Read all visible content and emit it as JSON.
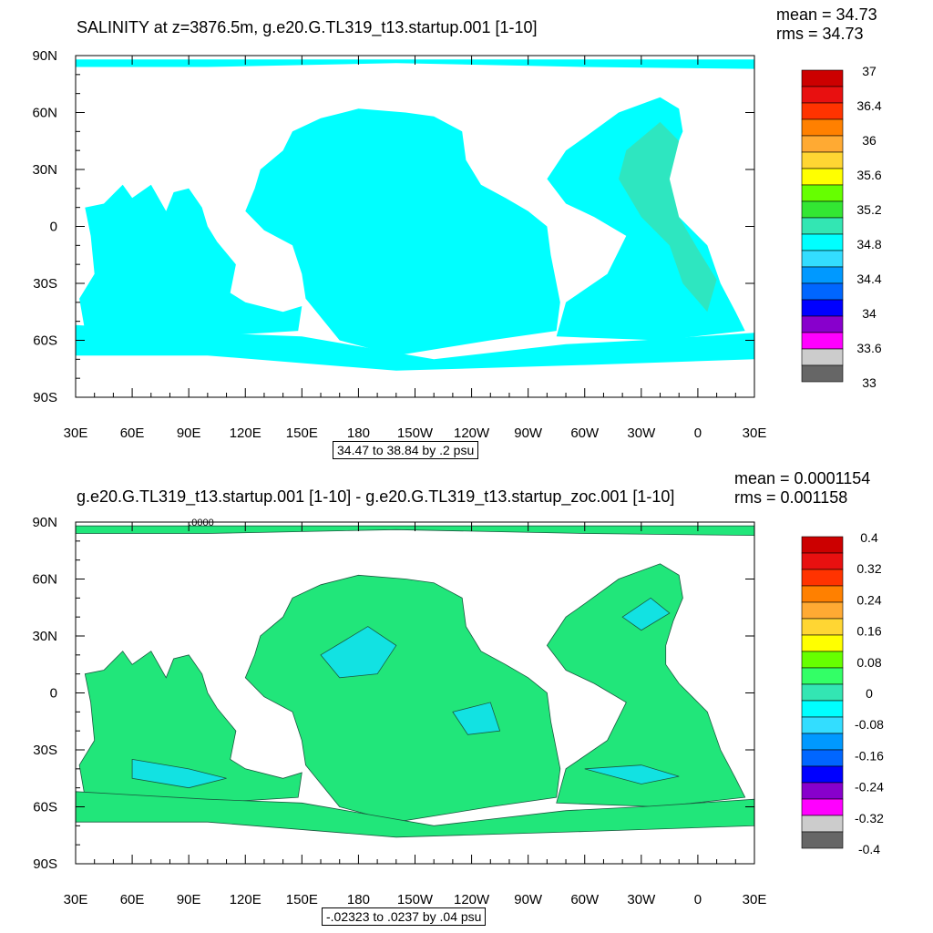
{
  "panels": [
    {
      "id": "top",
      "title": "SALINITY at z=3876.5m, g.e20.G.TL319_t13.startup.001 [1-10]",
      "mean_label": "mean = 34.73",
      "rms_label": "rms = 34.73",
      "range_label": "34.47 to 38.84 by .2 psu",
      "ocean_fill": "#00ffff",
      "accent_fill": "#2ee6c0"
    },
    {
      "id": "bottom",
      "title": "g.e20.G.TL319_t13.startup.001 [1-10] - g.e20.G.TL319_t13.startup_zoc.001 [1-10]",
      "mean_label": "mean = 0.0001154",
      "rms_label": "rms = 0.001158",
      "range_label": "-.02323 to .0237 by .04 psu",
      "contour_label": ".0000",
      "ocean_fill": "#21e67a",
      "accent_fill": "#12e2e2"
    }
  ],
  "chart_data": [
    {
      "type": "heatmap",
      "title": "SALINITY at z=3876.5m, g.e20.G.TL319_t13.startup.001 [1-10]",
      "x_ticks": [
        "30E",
        "60E",
        "90E",
        "120E",
        "150E",
        "180",
        "150W",
        "120W",
        "90W",
        "60W",
        "30W",
        "0",
        "30E"
      ],
      "y_ticks": [
        "90N",
        "60N",
        "30N",
        "0",
        "30S",
        "60S",
        "90S"
      ],
      "x_range_deg": [
        30,
        390
      ],
      "y_range_deg": [
        -90,
        90
      ],
      "colorbar": {
        "colors": [
          "#cc0000",
          "#e81010",
          "#ff3300",
          "#ff8000",
          "#ffaa33",
          "#ffd633",
          "#ffff00",
          "#66ff00",
          "#33e633",
          "#33e6b3",
          "#00ffff",
          "#33ddff",
          "#0099ff",
          "#0066ff",
          "#0000ff",
          "#8800cc",
          "#ff00ff",
          "#cccccc",
          "#666666"
        ],
        "labels": [
          "37",
          "36.4",
          "36",
          "35.6",
          "35.2",
          "34.8",
          "34.4",
          "34",
          "33.6",
          "33"
        ]
      },
      "mean": 34.73,
      "rms": 34.73,
      "contour_min": 34.47,
      "contour_max": 38.84,
      "contour_interval": 0.2,
      "units": "psu"
    },
    {
      "type": "heatmap",
      "title": "g.e20.G.TL319_t13.startup.001 [1-10] - g.e20.G.TL319_t13.startup_zoc.001 [1-10]",
      "x_ticks": [
        "30E",
        "60E",
        "90E",
        "120E",
        "150E",
        "180",
        "150W",
        "120W",
        "90W",
        "60W",
        "30W",
        "0",
        "30E"
      ],
      "y_ticks": [
        "90N",
        "60N",
        "30N",
        "0",
        "30S",
        "60S",
        "90S"
      ],
      "x_range_deg": [
        30,
        390
      ],
      "y_range_deg": [
        -90,
        90
      ],
      "colorbar": {
        "colors": [
          "#cc0000",
          "#e81010",
          "#ff3300",
          "#ff8000",
          "#ffaa33",
          "#ffd633",
          "#ffff00",
          "#66ff00",
          "#33ff66",
          "#33e6b3",
          "#00ffff",
          "#33ddff",
          "#0099ff",
          "#0066ff",
          "#0000ff",
          "#8800cc",
          "#ff00ff",
          "#cccccc",
          "#666666"
        ],
        "labels": [
          "0.4",
          "0.32",
          "0.24",
          "0.16",
          "0.08",
          "0",
          "-0.08",
          "-0.16",
          "-0.24",
          "-0.32",
          "-0.4"
        ]
      },
      "mean": 0.0001154,
      "rms": 0.001158,
      "contour_min": -0.02323,
      "contour_max": 0.0237,
      "contour_interval": 0.04,
      "units": "psu"
    }
  ]
}
